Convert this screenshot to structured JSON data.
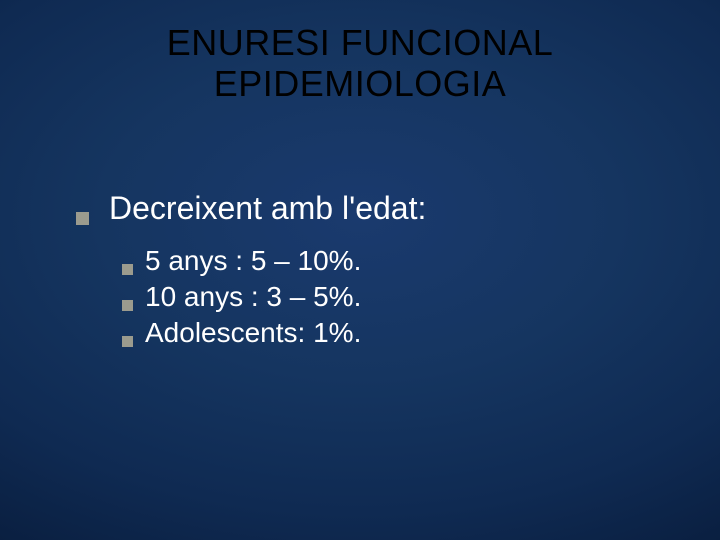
{
  "slide": {
    "title_line1": "ENURESI FUNCIONAL",
    "title_line2": "EPIDEMIOLOGIA",
    "title_color": "#000000",
    "title_fontsize": 36,
    "background_gradient_inner": "#1a3a6e",
    "background_gradient_outer": "#04122c",
    "bullet_color": "#9b9b8e",
    "body_text_color": "#ffffff",
    "body_fontsize_l1": 32,
    "body_fontsize_l2": 28,
    "main": {
      "text": "Decreixent amb l'edat:",
      "items": [
        {
          "text": "5 anys : 5 – 10%."
        },
        {
          "text": "10 anys : 3 – 5%."
        },
        {
          "text": "Adolescents: 1%."
        }
      ]
    }
  }
}
